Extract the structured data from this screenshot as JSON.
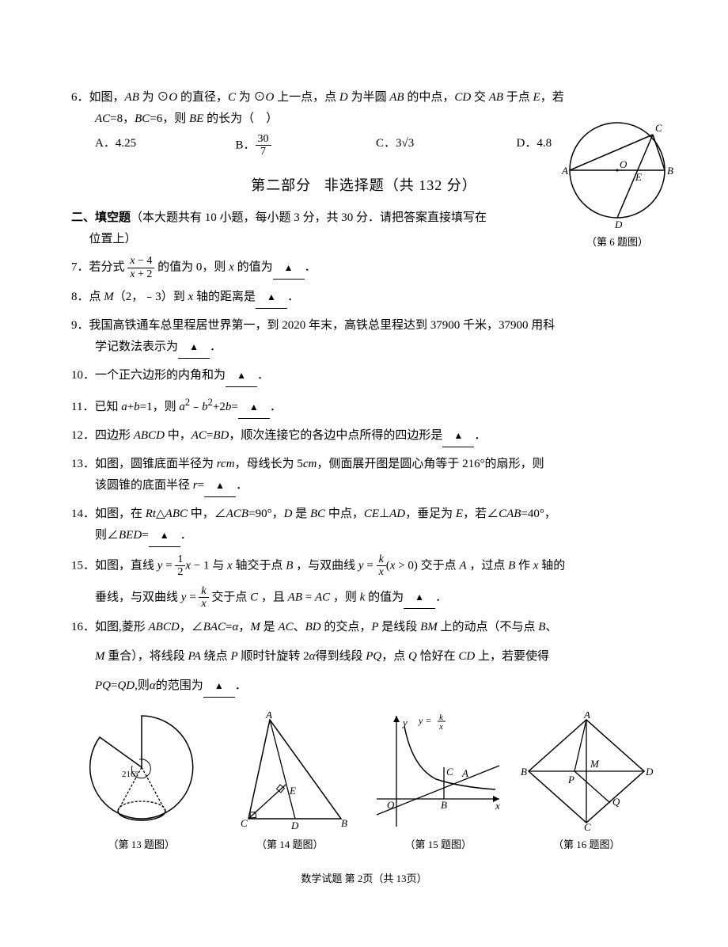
{
  "q6": {
    "num": "6．",
    "text_line1": "如图，<span class='italic'>AB</span> 为 ⊙<span class='italic'>O</span> 的直径，<span class='italic'>C</span> 为 ⊙<span class='italic'>O</span> 上一点，点 <span class='italic'>D</span> 为半圆 <span class='italic'>AB</span> 的中点，<span class='italic'>CD</span> 交 <span class='italic'>AB</span> 于点 <span class='italic'>E</span>，若",
    "text_line2": "<span class='italic'>AC</span>=8，<span class='italic'>BC</span>=6，则 <span class='italic'>BE</span> 的长为（&nbsp;&nbsp;&nbsp;&nbsp;）",
    "optA": "A．4.25",
    "optB_prefix": "B．",
    "optB_num": "30",
    "optB_den": "7",
    "optC": "C．3√3",
    "optD": "D．4.8",
    "caption": "（第 6 题图）"
  },
  "section2": {
    "title": "第二部分&nbsp;&nbsp;&nbsp;非选择题（共 132 分）",
    "header": "<span class='bold'>二、填空题</span>（本大题共有 10 小题，每小题 3 分，共 30 分．请把答案直接填写在",
    "header2": "位置上）"
  },
  "q7": {
    "prefix": "7．若分式 ",
    "frac_num": "<span class='italic'>x</span> − 4",
    "frac_den": "<span class='italic'>x</span> + 2",
    "suffix": " 的值为 0，则 <span class='italic'>x</span> 的值为"
  },
  "q8": "8．点 <span class='italic'>M</span>（2，﹣3）到 <span class='italic'>x</span> 轴的距离是",
  "q9": {
    "line1": "9．我国高铁通车总里程居世界第一，到 2020 年末，高铁总里程达到 37900 千米，37900 用科",
    "line2": "学记数法表示为"
  },
  "q10": "10．一个正六边形的内角和为",
  "q11": "11．已知 <span class='italic'>a</span>+<span class='italic'>b</span>=1，则 <span class='italic'>a</span><sup>2</sup>﹣<span class='italic'>b</span><sup>2</sup>+2<span class='italic'>b</span>=",
  "q12": "12．四边形 <span class='italic'>ABCD</span> 中，<span class='italic'>AC</span>=<span class='italic'>BD</span>，顺次连接它的各边中点所得的四边形是",
  "q13": {
    "line1": "13．如图，圆锥底面半径为 <span class='italic'>rcm</span>，母线长为 5<span class='italic'>cm</span>，侧面展开图是圆心角等于 216°的扇形，则",
    "line2": "该圆锥的底面半径 <span class='italic'>r</span>="
  },
  "q14": {
    "line1": "14．如图，在 <span class='italic'>Rt</span>△<span class='italic'>ABC</span> 中，∠<span class='italic'>ACB</span>=90°，<span class='italic'>D</span> 是 <span class='italic'>BC</span> 中点，<span class='italic'>CE</span>⊥<span class='italic'>AD</span>，垂足为 <span class='italic'>E</span>，若∠<span class='italic'>CAB</span>=40°，",
    "line2": "则∠<span class='italic'>BED</span>="
  },
  "q15": {
    "prefix1": "15．如图，直线 ",
    "y_eq": "<span class='italic'>y</span> = ",
    "half_num": "1",
    "half_den": "2",
    "mid1": "<span class='italic'>x</span> − 1 与 <span class='italic'>x</span> 轴交于点 <span class='italic'>B</span> ，与双曲线 ",
    "k_num": "<span class='italic'>k</span>",
    "k_den": "<span class='italic'>x</span>",
    "mid2": "(<span class='italic'>x</span> &gt; 0) 交于点 <span class='italic'>A</span> ，过点 <span class='italic'>B</span> 作 <span class='italic'>x</span> 轴的",
    "line2_prefix": "垂线，与双曲线 ",
    "line2_suffix": " 交于点 <span class='italic'>C</span> ，且 <span class='italic'>AB</span> = <span class='italic'>AC</span> ，则 <span class='italic'>k</span> 的值为"
  },
  "q16": {
    "line1": "16．如图,菱形 <span class='italic'>ABCD</span>，∠<span class='italic'>BAC</span>=<span class='italic'>α</span>，<span class='italic'>M</span> 是 <span class='italic'>AC</span>、<span class='italic'>BD</span> 的交点，<span class='italic'>P</span> 是线段 <span class='italic'>BM</span> 上的动点（不与点 <span class='italic'>B</span>、",
    "line2": "<span class='italic'>M</span> 重合），将线段 <span class='italic'>PA</span> 绕点 <span class='italic'>P</span> 顺时针旋转 2<span class='italic'>α</span>得到线段 <span class='italic'>PQ</span>，点 <span class='italic'>Q</span> 恰好在 <span class='italic'>CD</span> 上，若要使得",
    "line3": "<span class='italic'>PQ</span>=<span class='italic'>QD</span>,则<span class='italic'>α</span>的范围为"
  },
  "figures": {
    "f13": "（第 13 题图）",
    "f14": "（第 14 题图）",
    "f15": "（第 15 题图）",
    "f16": "（第 16 题图）"
  },
  "footer": "数学试题 第 2页（共 13页）"
}
